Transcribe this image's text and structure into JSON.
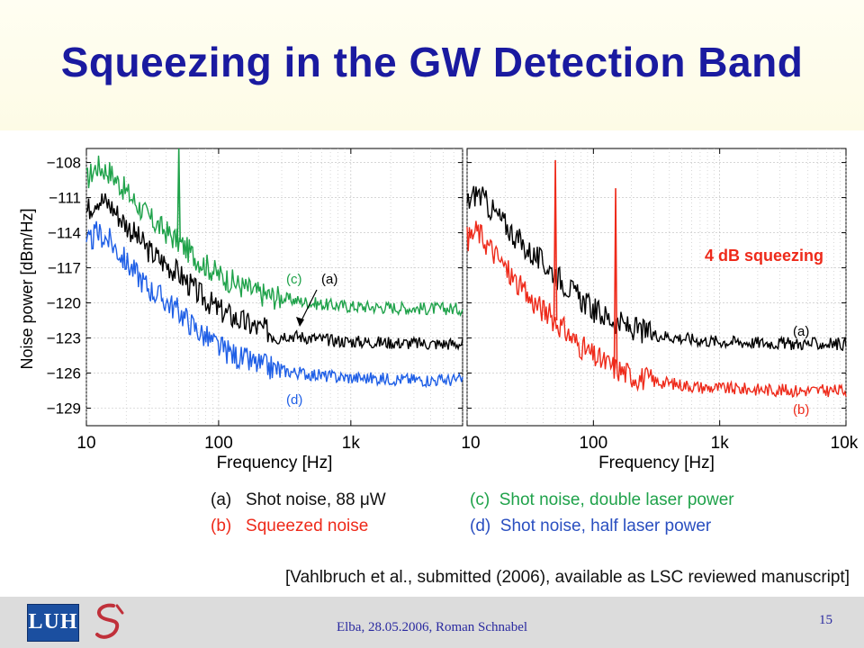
{
  "slide": {
    "title": "Squeezing in the GW Detection Band",
    "footer": "Elba, 28.05.2006,  Roman Schnabel",
    "page_number": "15",
    "citation": "[Vahlbruch et al., submitted (2006), available as LSC reviewed manuscript]",
    "logo_text": "LUH"
  },
  "legend": {
    "a": "(a)   Shot noise, 88 μW",
    "b": "(b)   Squeezed noise",
    "c": "(c)  Shot noise, double laser power",
    "d": "(d)  Shot noise, half laser power"
  },
  "colors": {
    "title": "#1a1aa0",
    "a": "#000000",
    "b": "#ee2a1a",
    "c": "#1fa24a",
    "d": "#1f5fe6",
    "annotation": "#ee2a1a"
  },
  "chart_data": [
    {
      "type": "line",
      "xlabel": "Frequency [Hz]",
      "ylabel": "Noise power [dBm/Hz]",
      "x_scale": "log",
      "xlim": [
        10,
        7000
      ],
      "ylim": [
        -130.5,
        -106.8
      ],
      "x_ticks": [
        10,
        100,
        1000
      ],
      "x_tick_labels": [
        "10",
        "100",
        "1k"
      ],
      "y_ticks": [
        -108,
        -111,
        -114,
        -117,
        -120,
        -123,
        -126,
        -129
      ],
      "y_tick_labels": [
        "−108",
        "−111",
        "−114",
        "−117",
        "−120",
        "−123",
        "−126",
        "−129"
      ],
      "grid": true,
      "series": [
        {
          "name": "(c)",
          "color": "#1fa24a",
          "x": [
            10,
            12,
            15,
            20,
            30,
            50,
            70,
            100,
            150,
            200,
            300,
            500,
            700,
            1000,
            2000,
            4000,
            7000
          ],
          "y": [
            -109.5,
            -108.3,
            -108.8,
            -110.5,
            -112.8,
            -114.8,
            -116.3,
            -117.6,
            -118.6,
            -119.2,
            -119.6,
            -120.0,
            -120.2,
            -120.3,
            -120.4,
            -120.5,
            -120.5
          ],
          "spike": {
            "x": 50,
            "y": -106.8
          }
        },
        {
          "name": "(a)",
          "color": "#000000",
          "x": [
            10,
            12,
            15,
            20,
            30,
            50,
            70,
            100,
            150,
            200,
            300,
            500,
            700,
            1000,
            2000,
            4000,
            7000
          ],
          "y": [
            -112.2,
            -111.0,
            -111.6,
            -113.3,
            -115.6,
            -117.5,
            -119.2,
            -120.6,
            -121.6,
            -122.2,
            -122.7,
            -123.0,
            -123.2,
            -123.3,
            -123.4,
            -123.5,
            -123.5
          ]
        },
        {
          "name": "(d)",
          "color": "#1f5fe6",
          "x": [
            10,
            12,
            15,
            20,
            30,
            50,
            70,
            100,
            150,
            200,
            300,
            500,
            700,
            1000,
            2000,
            4000,
            7000
          ],
          "y": [
            -115.2,
            -114.0,
            -114.7,
            -116.5,
            -118.8,
            -120.7,
            -122.4,
            -123.8,
            -124.8,
            -125.3,
            -125.8,
            -126.1,
            -126.3,
            -126.4,
            -126.5,
            -126.6,
            -126.6
          ]
        }
      ],
      "annotations": [
        "(c)",
        "(a)",
        "(d)"
      ]
    },
    {
      "type": "line",
      "xlabel": "Frequency [Hz]",
      "x_scale": "log",
      "xlim": [
        10,
        10000
      ],
      "ylim": [
        -130.5,
        -106.8
      ],
      "x_ticks": [
        10,
        100,
        1000,
        10000
      ],
      "x_tick_labels": [
        "10",
        "100",
        "1k",
        "10k"
      ],
      "y_ticks": [
        -108,
        -111,
        -114,
        -117,
        -120,
        -123,
        -126,
        -129
      ],
      "grid": true,
      "series": [
        {
          "name": "(a)",
          "color": "#000000",
          "x": [
            10,
            12,
            15,
            20,
            30,
            50,
            70,
            100,
            150,
            200,
            300,
            500,
            700,
            1000,
            2000,
            4000,
            10000
          ],
          "y": [
            -111.5,
            -110.5,
            -111.8,
            -113.3,
            -115.5,
            -117.5,
            -119.2,
            -120.6,
            -121.6,
            -122.2,
            -122.7,
            -123.0,
            -123.2,
            -123.3,
            -123.4,
            -123.5,
            -123.5
          ]
        },
        {
          "name": "(b)",
          "color": "#ee2a1a",
          "x": [
            10,
            12,
            15,
            20,
            30,
            50,
            70,
            100,
            150,
            200,
            300,
            500,
            700,
            1000,
            2000,
            4000,
            10000
          ],
          "y": [
            -114.6,
            -113.8,
            -115.2,
            -117.0,
            -119.5,
            -121.5,
            -123.2,
            -124.6,
            -125.6,
            -126.2,
            -126.7,
            -127.0,
            -127.2,
            -127.3,
            -127.4,
            -127.5,
            -127.5
          ],
          "spikes": [
            {
              "x": 50,
              "y": -107.8
            },
            {
              "x": 150,
              "y": -110.2
            }
          ]
        }
      ],
      "annotations": [
        "4 dB squeezing",
        "(a)",
        "(b)"
      ]
    }
  ]
}
